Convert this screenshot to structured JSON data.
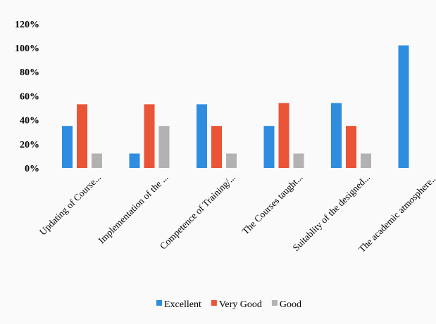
{
  "chart_data": {
    "type": "bar",
    "title": "",
    "xlabel": "",
    "ylabel": "",
    "ylim": [
      0,
      120
    ],
    "y_ticks": [
      "0%",
      "20%",
      "40%",
      "60%",
      "80%",
      "100%",
      "120%"
    ],
    "grid": false,
    "legend_position": "bottom",
    "categories": [
      "Updating of Course...",
      "Implementation of the ...",
      "Competence of Training/...",
      "The Courses taught...",
      "Suitablity of the designed...",
      "The academic atmosphere..."
    ],
    "series": [
      {
        "name": "Excellent",
        "color": "#2f8de0",
        "values": [
          35,
          12,
          53,
          35,
          54,
          102
        ]
      },
      {
        "name": "Very Good",
        "color": "#ea5437",
        "values": [
          53,
          53,
          35,
          54,
          35,
          0
        ]
      },
      {
        "name": "Good",
        "color": "#b2b2b2",
        "values": [
          12,
          35,
          12,
          12,
          12,
          0
        ]
      }
    ]
  }
}
